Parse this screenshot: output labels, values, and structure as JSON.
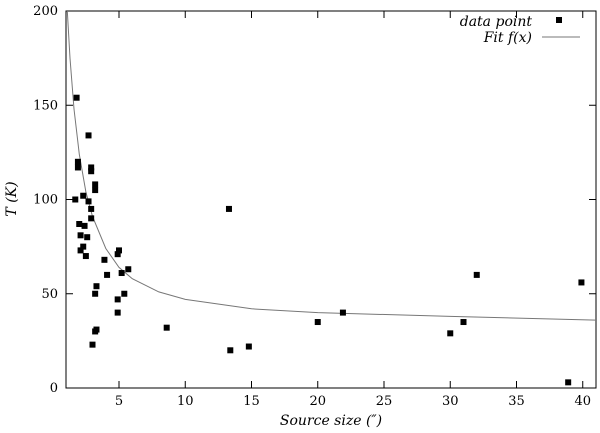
{
  "chart_data": {
    "type": "scatter",
    "xlabel": "Source size (″)",
    "ylabel": "T (K)",
    "xlim": [
      1,
      41
    ],
    "ylim": [
      0,
      200
    ],
    "xticks": [
      5,
      10,
      15,
      20,
      25,
      30,
      35,
      40
    ],
    "yticks": [
      0,
      50,
      100,
      150,
      200
    ],
    "grid": false,
    "legend_position": "top-right",
    "legend": [
      "data point",
      "Fit f(x)"
    ],
    "series": [
      {
        "name": "data point",
        "kind": "scatter",
        "points": [
          [
            1.8,
            154
          ],
          [
            2.7,
            134
          ],
          [
            1.9,
            120
          ],
          [
            1.9,
            117
          ],
          [
            2.9,
            117
          ],
          [
            2.9,
            115
          ],
          [
            3.2,
            108
          ],
          [
            3.2,
            105
          ],
          [
            2.3,
            102
          ],
          [
            1.7,
            100
          ],
          [
            2.7,
            99
          ],
          [
            2.9,
            95
          ],
          [
            2.9,
            90
          ],
          [
            2.0,
            87
          ],
          [
            2.4,
            86
          ],
          [
            2.1,
            81
          ],
          [
            2.6,
            80
          ],
          [
            2.3,
            75
          ],
          [
            2.1,
            73
          ],
          [
            2.5,
            70
          ],
          [
            5.0,
            73
          ],
          [
            4.9,
            71
          ],
          [
            3.9,
            68
          ],
          [
            5.7,
            63
          ],
          [
            5.2,
            61
          ],
          [
            4.1,
            60
          ],
          [
            3.3,
            54
          ],
          [
            3.2,
            50
          ],
          [
            5.4,
            50
          ],
          [
            4.9,
            47
          ],
          [
            4.9,
            40
          ],
          [
            3.3,
            31
          ],
          [
            3.2,
            30
          ],
          [
            3.0,
            23
          ],
          [
            8.6,
            32
          ],
          [
            13.3,
            95
          ],
          [
            13.4,
            20
          ],
          [
            14.8,
            22
          ],
          [
            20.0,
            35
          ],
          [
            21.9,
            40
          ],
          [
            30.0,
            29
          ],
          [
            31.0,
            35
          ],
          [
            32.0,
            60
          ],
          [
            38.9,
            3
          ],
          [
            39.9,
            56
          ]
        ]
      },
      {
        "name": "Fit f(x)",
        "kind": "line",
        "curve": [
          [
            1.1,
            200
          ],
          [
            1.3,
            175
          ],
          [
            1.6,
            148
          ],
          [
            2,
            124
          ],
          [
            2.5,
            104
          ],
          [
            3,
            91
          ],
          [
            4,
            74
          ],
          [
            5,
            64
          ],
          [
            6,
            58
          ],
          [
            8,
            51
          ],
          [
            10,
            47
          ],
          [
            15,
            42
          ],
          [
            20,
            40
          ],
          [
            30,
            38
          ],
          [
            41,
            36
          ]
        ]
      }
    ]
  }
}
